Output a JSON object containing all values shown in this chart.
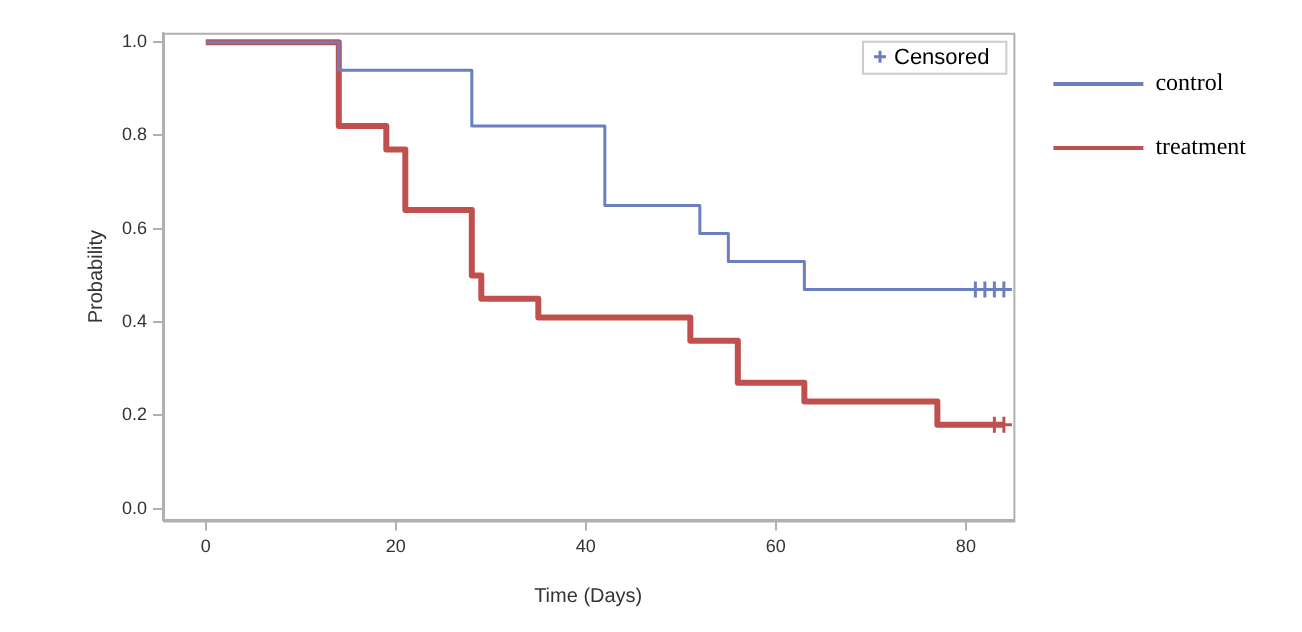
{
  "chart_data": {
    "type": "step",
    "xlabel": "Time (Days)",
    "ylabel": "Probability",
    "xlim": [
      -4.5,
      85
    ],
    "xticks": [
      0,
      20,
      40,
      60,
      80
    ],
    "ylim": [
      -0.025,
      1.02
    ],
    "yticks": [
      {
        "value": 0,
        "label": "0.0"
      },
      {
        "value": 0.2,
        "label": "0.2"
      },
      {
        "value": 0.4,
        "label": "0.4"
      },
      {
        "value": 0.6,
        "label": "0.6"
      },
      {
        "value": 0.8,
        "label": "0.8"
      },
      {
        "value": 1,
        "label": "1.0"
      }
    ],
    "legend": "right",
    "marker": "none",
    "series": [
      {
        "name": "control",
        "color": "#6a7fc0",
        "x": [
          0,
          14,
          28,
          42,
          52,
          55,
          63,
          84
        ],
        "values": [
          1,
          0.94,
          0.82,
          0.65,
          0.59,
          0.53,
          0.47,
          0.47
        ]
      },
      {
        "name": "treatment",
        "color": "#c0504d",
        "x": [
          0,
          14,
          19,
          21,
          28,
          29,
          35,
          51,
          56,
          63,
          77,
          84
        ],
        "values": [
          1,
          0.82,
          0.77,
          0.64,
          0.5,
          0.45,
          0.41,
          0.36,
          0.27,
          0.23,
          0.18,
          0.18
        ]
      },
      {
        "name": "Censored",
        "type": "scatter",
        "marker": "cross",
        "x": [
          81,
          82,
          83,
          84,
          83,
          84
        ],
        "values": [
          0.47,
          0.47,
          0.47,
          0.47,
          0.18,
          0.18
        ],
        "colors": [
          "#6a7fc0",
          "#6a7fc0",
          "#6a7fc0",
          "#6a7fc0",
          "#c0504d",
          "#c0504d"
        ]
      }
    ]
  }
}
